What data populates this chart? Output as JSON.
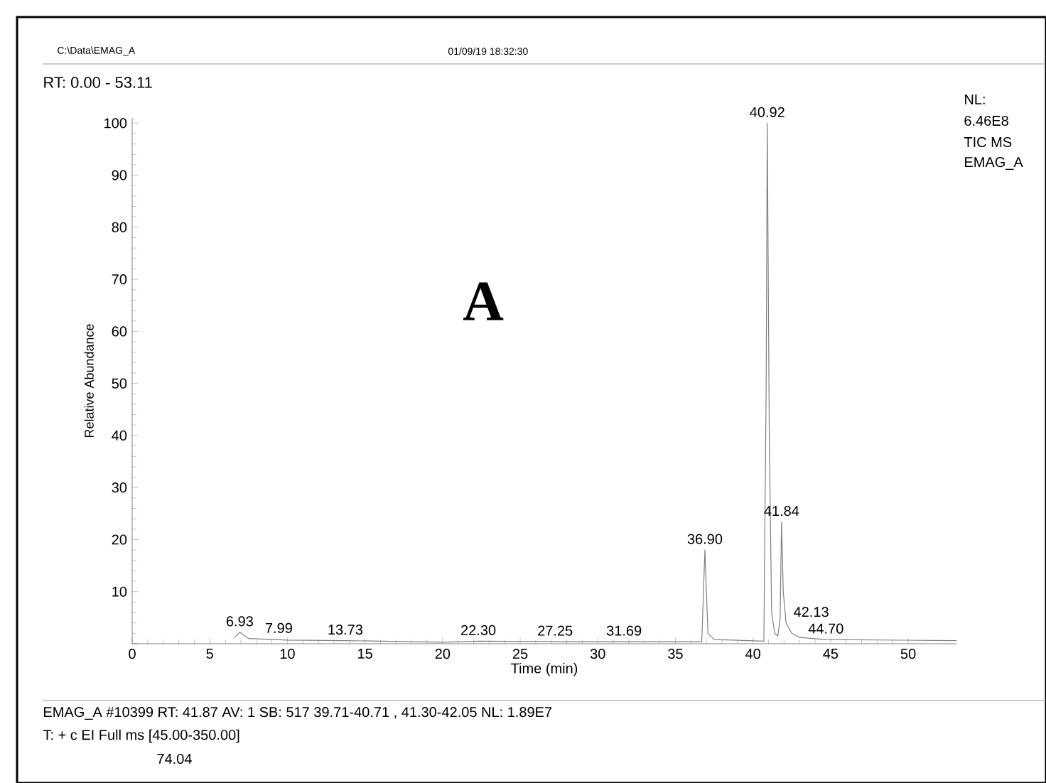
{
  "chart_data": {
    "type": "line",
    "title": "RT: 0.00 - 53.11",
    "xlabel": "Time (min)",
    "ylabel": "Relative Abundance",
    "x": [
      6.6,
      6.93,
      7.5,
      10,
      13.73,
      20,
      22.3,
      27.25,
      31.69,
      36.7,
      36.9,
      37.1,
      37.5,
      40.7,
      40.85,
      40.92,
      41.05,
      41.2,
      41.4,
      41.6,
      41.75,
      41.84,
      41.95,
      42.13,
      42.5,
      43,
      44.7,
      53.11
    ],
    "series": [
      {
        "color": "#7f7f7f",
        "values": [
          1.2,
          2.2,
          1.0,
          0.7,
          0.6,
          0.3,
          0.5,
          0.4,
          0.4,
          0.4,
          18,
          2,
          0.8,
          0.5,
          50,
          100,
          40,
          6,
          2,
          1.5,
          5,
          23.4,
          10,
          4,
          2,
          1.2,
          0.8,
          0.6
        ]
      }
    ],
    "xlim": [
      0,
      53.11
    ],
    "ylim": [
      0,
      101
    ],
    "xticks": [
      0,
      5,
      10,
      15,
      20,
      25,
      30,
      35,
      40,
      45,
      50
    ],
    "yticks": [
      {
        "value": 0,
        "label": null
      },
      10,
      20,
      30,
      40,
      50,
      60,
      70,
      80,
      90,
      100
    ],
    "annotations": [
      {
        "text": "6.93",
        "x": 6.93,
        "y": 2.2
      },
      {
        "text": "7.99",
        "x": 7.99,
        "y": 0.9
      },
      {
        "text": "13.73",
        "x": 13.73,
        "y": 0.6
      },
      {
        "text": "22.30",
        "x": 22.3,
        "y": 0.5
      },
      {
        "text": "27.25",
        "x": 27.25,
        "y": 0.4
      },
      {
        "text": "31.69",
        "x": 31.69,
        "y": 0.4
      },
      {
        "text": "36.90",
        "x": 36.9,
        "y": 18
      },
      {
        "text": "40.92",
        "x": 40.92,
        "y": 100
      },
      {
        "text": "41.84",
        "x": 41.84,
        "y": 23.4
      },
      {
        "text": "42.13",
        "x": 42.13,
        "y": 4
      },
      {
        "text": "44.70",
        "x": 44.7,
        "y": 0.8
      },
      "C:\\Data\\EMAG_A",
      "01/09/19 18:32:30",
      "A",
      "NL:",
      "6.46E8",
      "TIC  MS",
      "EMAG_A",
      "EMAG_A #10399  RT: 41.87  AV: 1  SB: 517  39.71-40.71 , 41.30-42.05  NL: 1.89E7",
      "T: + c EI Full ms [45.00-350.00]",
      "74.04"
    ]
  }
}
